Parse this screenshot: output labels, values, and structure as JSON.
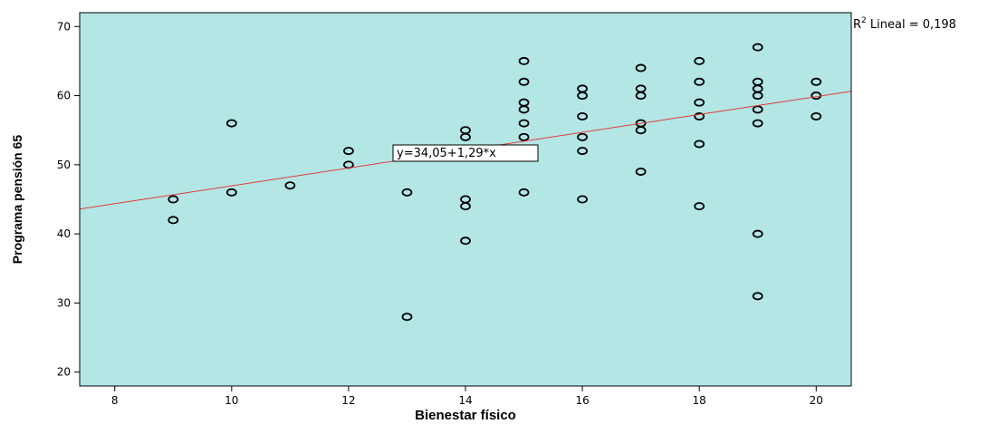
{
  "chart_data": {
    "type": "scatter",
    "xlabel": "Bienestar físico",
    "ylabel": "Programa pensión 65",
    "xlim": [
      7.4,
      20.6
    ],
    "ylim": [
      18,
      72
    ],
    "x_ticks": [
      8,
      10,
      12,
      14,
      16,
      18,
      20
    ],
    "y_ticks": [
      20,
      30,
      40,
      50,
      60,
      70
    ],
    "grid": false,
    "background": "#b4e6e6",
    "point_color": "#000000",
    "fit_line_color": "#e03c3c",
    "r2_label": "R",
    "r2_sup": "2",
    "r2_text": " Lineal = 0,198",
    "equation": "y=34,05+1,29*x",
    "fit": {
      "intercept": 34.05,
      "slope": 1.29
    },
    "series": [
      {
        "points": [
          {
            "x": 9,
            "y": 45
          },
          {
            "x": 9,
            "y": 42
          },
          {
            "x": 10,
            "y": 56
          },
          {
            "x": 10,
            "y": 46
          },
          {
            "x": 11,
            "y": 47
          },
          {
            "x": 12,
            "y": 52
          },
          {
            "x": 12,
            "y": 50
          },
          {
            "x": 13,
            "y": 46
          },
          {
            "x": 13,
            "y": 28
          },
          {
            "x": 14,
            "y": 55
          },
          {
            "x": 14,
            "y": 54
          },
          {
            "x": 14,
            "y": 45
          },
          {
            "x": 14,
            "y": 44
          },
          {
            "x": 14,
            "y": 39
          },
          {
            "x": 15,
            "y": 65
          },
          {
            "x": 15,
            "y": 62
          },
          {
            "x": 15,
            "y": 59
          },
          {
            "x": 15,
            "y": 58
          },
          {
            "x": 15,
            "y": 56
          },
          {
            "x": 15,
            "y": 54
          },
          {
            "x": 15,
            "y": 52
          },
          {
            "x": 15,
            "y": 46
          },
          {
            "x": 16,
            "y": 61
          },
          {
            "x": 16,
            "y": 60
          },
          {
            "x": 16,
            "y": 57
          },
          {
            "x": 16,
            "y": 54
          },
          {
            "x": 16,
            "y": 52
          },
          {
            "x": 16,
            "y": 45
          },
          {
            "x": 17,
            "y": 64
          },
          {
            "x": 17,
            "y": 61
          },
          {
            "x": 17,
            "y": 60
          },
          {
            "x": 17,
            "y": 56
          },
          {
            "x": 17,
            "y": 55
          },
          {
            "x": 17,
            "y": 49
          },
          {
            "x": 18,
            "y": 65
          },
          {
            "x": 18,
            "y": 62
          },
          {
            "x": 18,
            "y": 59
          },
          {
            "x": 18,
            "y": 57
          },
          {
            "x": 18,
            "y": 53
          },
          {
            "x": 18,
            "y": 44
          },
          {
            "x": 19,
            "y": 67
          },
          {
            "x": 19,
            "y": 62
          },
          {
            "x": 19,
            "y": 61
          },
          {
            "x": 19,
            "y": 60
          },
          {
            "x": 19,
            "y": 58
          },
          {
            "x": 19,
            "y": 56
          },
          {
            "x": 19,
            "y": 40
          },
          {
            "x": 19,
            "y": 31
          },
          {
            "x": 20,
            "y": 62
          },
          {
            "x": 20,
            "y": 60
          },
          {
            "x": 20,
            "y": 57
          }
        ]
      }
    ]
  }
}
